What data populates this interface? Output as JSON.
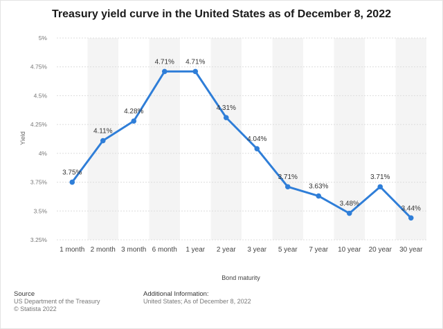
{
  "chart_data": {
    "type": "line",
    "title": "Treasury yield curve in the United States as of December 8, 2022",
    "xlabel": "Bond maturity",
    "ylabel": "Yield",
    "categories": [
      "1 month",
      "2 month",
      "3 month",
      "6 month",
      "1 year",
      "2 year",
      "3 year",
      "5 year",
      "7 year",
      "10 year",
      "20 year",
      "30 year"
    ],
    "values": [
      3.75,
      4.11,
      4.28,
      4.71,
      4.71,
      4.31,
      4.04,
      3.71,
      3.63,
      3.48,
      3.71,
      3.44
    ],
    "data_labels": [
      "3.75%",
      "4.11%",
      "4.28%",
      "4.71%",
      "4.71%",
      "4.31%",
      "4.04%",
      "3.71%",
      "3.63%",
      "3.48%",
      "3.71%",
      "3.44%"
    ],
    "ylim": [
      3.25,
      5
    ],
    "yticks": [
      3.25,
      3.5,
      3.75,
      4,
      4.25,
      4.5,
      4.75,
      5
    ],
    "ytick_labels": [
      "3.25%",
      "3.5%",
      "3.75%",
      "4%",
      "4.25%",
      "4.5%",
      "4.75%",
      "5%"
    ],
    "line_color": "#2f7ed8",
    "band_color": "#f4f4f4",
    "grid": true,
    "legend": "none"
  },
  "footer": {
    "source_heading": "Source",
    "source_line1": "US Department of the Treasury",
    "source_line2": "© Statista 2022",
    "info_heading": "Additional Information:",
    "info_line1": "United States; As of December 8, 2022"
  }
}
